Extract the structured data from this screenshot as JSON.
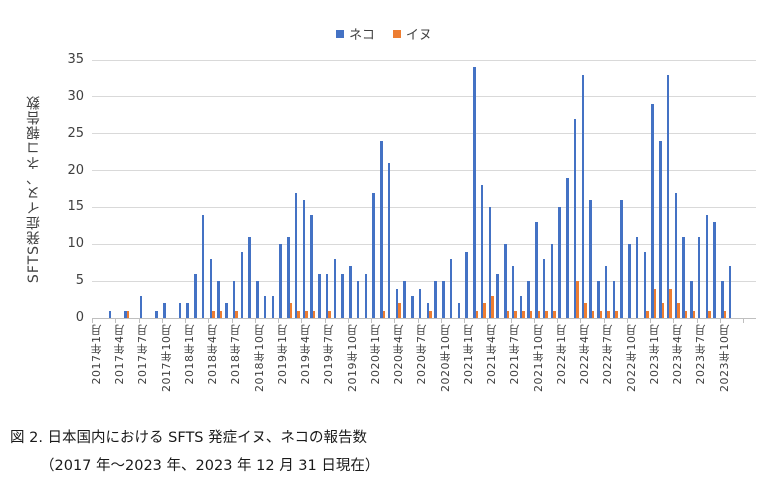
{
  "figure": {
    "y_axis_title": "SFTS発症イヌ、ネコ報告数",
    "caption_line1": "図 2. 日本国内における SFTS 発症イヌ、ネコの報告数",
    "caption_line2": "（2017 年～2023 年、2023 年 12 月 31 日現在）"
  },
  "chart_data": {
    "type": "bar",
    "title": "",
    "xlabel": "",
    "ylabel": "SFTS発症イヌ、ネコ報告数",
    "ylim": [
      0,
      35
    ],
    "y_ticks": [
      0,
      5,
      10,
      15,
      20,
      25,
      30,
      35
    ],
    "grid": true,
    "legend_position": "top",
    "categories": [
      "2017年1月",
      "2017年2月",
      "2017年3月",
      "2017年4月",
      "2017年5月",
      "2017年6月",
      "2017年7月",
      "2017年8月",
      "2017年9月",
      "2017年10月",
      "2017年11月",
      "2017年12月",
      "2018年1月",
      "2018年2月",
      "2018年3月",
      "2018年4月",
      "2018年5月",
      "2018年6月",
      "2018年7月",
      "2018年8月",
      "2018年9月",
      "2018年10月",
      "2018年11月",
      "2018年12月",
      "2019年1月",
      "2019年2月",
      "2019年3月",
      "2019年4月",
      "2019年5月",
      "2019年6月",
      "2019年7月",
      "2019年8月",
      "2019年9月",
      "2019年10月",
      "2019年11月",
      "2019年12月",
      "2020年1月",
      "2020年2月",
      "2020年3月",
      "2020年4月",
      "2020年5月",
      "2020年6月",
      "2020年7月",
      "2020年8月",
      "2020年9月",
      "2020年10月",
      "2020年11月",
      "2020年12月",
      "2021年1月",
      "2021年2月",
      "2021年3月",
      "2021年4月",
      "2021年5月",
      "2021年6月",
      "2021年7月",
      "2021年8月",
      "2021年9月",
      "2021年10月",
      "2021年11月",
      "2021年12月",
      "2022年1月",
      "2022年2月",
      "2022年3月",
      "2022年4月",
      "2022年5月",
      "2022年6月",
      "2022年7月",
      "2022年8月",
      "2022年9月",
      "2022年10月",
      "2022年11月",
      "2022年12月",
      "2023年1月",
      "2023年2月",
      "2023年3月",
      "2023年4月",
      "2023年5月",
      "2023年6月",
      "2023年7月",
      "2023年8月",
      "2023年9月",
      "2023年10月",
      "2023年11月",
      "2023年12月"
    ],
    "x_tick_labels": [
      "2017年1月",
      "2017年4月",
      "2017年7月",
      "2017年10月",
      "2018年1月",
      "2018年4月",
      "2018年7月",
      "2018年10月",
      "2019年1月",
      "2019年4月",
      "2019年7月",
      "2019年10月",
      "2020年1月",
      "2020年4月",
      "2020年7月",
      "2020年10月",
      "2021年1月",
      "2021年4月",
      "2021年7月",
      "2021年10月",
      "2022年1月",
      "2022年4月",
      "2022年7月",
      "2022年10月",
      "2023年1月",
      "2023年4月",
      "2023年7月",
      "2023年10月"
    ],
    "series": [
      {
        "name": "ネコ",
        "color": "#4472C4",
        "values": [
          0,
          0,
          1,
          0,
          1,
          0,
          3,
          0,
          1,
          2,
          0,
          2,
          2,
          6,
          14,
          8,
          5,
          2,
          5,
          9,
          11,
          5,
          3,
          3,
          10,
          11,
          17,
          16,
          14,
          6,
          6,
          8,
          6,
          7,
          5,
          6,
          17,
          24,
          21,
          4,
          5,
          3,
          4,
          2,
          5,
          5,
          8,
          2,
          9,
          34,
          18,
          15,
          6,
          10,
          7,
          3,
          5,
          13,
          8,
          10,
          15,
          19,
          27,
          33,
          16,
          5,
          7,
          5,
          16,
          10,
          11,
          9,
          29,
          24,
          33,
          17,
          11,
          5,
          11,
          14,
          13,
          5,
          7,
          0
        ]
      },
      {
        "name": "イヌ",
        "color": "#ED7D31",
        "values": [
          0,
          0,
          0,
          0,
          1,
          0,
          0,
          0,
          0,
          0,
          0,
          0,
          0,
          0,
          0,
          1,
          1,
          0,
          1,
          0,
          0,
          0,
          0,
          0,
          0,
          2,
          1,
          1,
          1,
          0,
          1,
          0,
          0,
          0,
          0,
          0,
          0,
          1,
          0,
          2,
          0,
          0,
          0,
          1,
          0,
          0,
          0,
          0,
          0,
          1,
          2,
          3,
          0,
          1,
          1,
          1,
          1,
          1,
          1,
          1,
          0,
          0,
          5,
          2,
          1,
          1,
          1,
          1,
          0,
          0,
          0,
          1,
          4,
          2,
          4,
          2,
          1,
          1,
          0,
          1,
          0,
          1,
          0,
          0
        ]
      }
    ]
  }
}
